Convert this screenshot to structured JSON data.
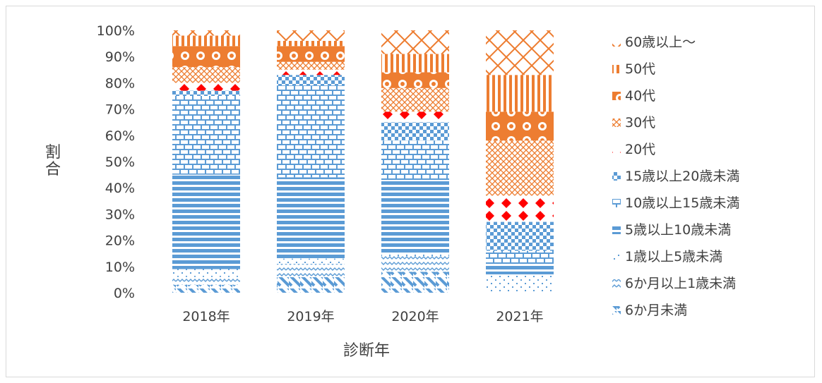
{
  "chart_data": {
    "type": "bar",
    "stacked": true,
    "percent": true,
    "title": "",
    "xlabel": "診断年",
    "ylabel": "割合",
    "ylim": [
      0,
      100
    ],
    "yticks": [
      "0%",
      "10%",
      "20%",
      "30%",
      "40%",
      "50%",
      "60%",
      "70%",
      "80%",
      "90%",
      "100%"
    ],
    "categories": [
      "2018年",
      "2019年",
      "2020年",
      "2021年"
    ],
    "legend_position": "right",
    "series": [
      {
        "name": "6か月未満",
        "color": "#5b9bd5",
        "pattern": "diag",
        "values": [
          3,
          6,
          8,
          0
        ]
      },
      {
        "name": "6か月以上1歳未満",
        "color": "#5b9bd5",
        "pattern": "wave",
        "values": [
          3,
          5,
          6,
          0
        ]
      },
      {
        "name": "1歳以上5歳未満",
        "color": "#5b9bd5",
        "pattern": "dots",
        "values": [
          3,
          2,
          1,
          7
        ]
      },
      {
        "name": "5歳以上10歳未満",
        "color": "#5b9bd5",
        "pattern": "hlines",
        "values": [
          36,
          31,
          28,
          4
        ]
      },
      {
        "name": "10歳以上15歳未満",
        "color": "#5b9bd5",
        "pattern": "brick",
        "values": [
          30,
          35,
          15,
          5
        ]
      },
      {
        "name": "15歳以上20歳未満",
        "color": "#5b9bd5",
        "pattern": "checker",
        "values": [
          2,
          4,
          7,
          11
        ]
      },
      {
        "name": "20代",
        "color": "#ff0000",
        "pattern": "diamond",
        "values": [
          3,
          2,
          4,
          10
        ]
      },
      {
        "name": "30代",
        "color": "#ed7d31",
        "pattern": "small",
        "values": [
          6,
          3,
          9,
          21
        ]
      },
      {
        "name": "40代",
        "color": "#ed7d31",
        "pattern": "circles",
        "values": [
          8,
          6,
          6,
          11
        ]
      },
      {
        "name": "50代",
        "color": "#ed7d31",
        "pattern": "vlines",
        "values": [
          4,
          2,
          7,
          14
        ]
      },
      {
        "name": "60歳以上～",
        "color": "#ed7d31",
        "pattern": "zigzag",
        "values": [
          2,
          4,
          9,
          17
        ]
      }
    ]
  }
}
